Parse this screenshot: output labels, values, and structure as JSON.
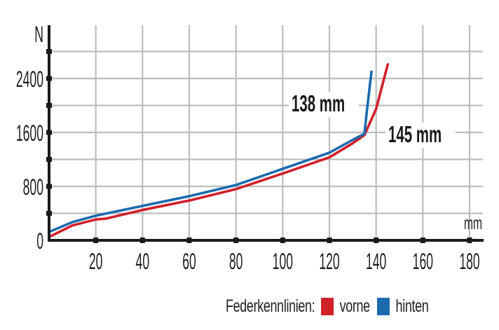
{
  "chart_data": {
    "type": "line",
    "title": "",
    "xlabel": "mm",
    "ylabel": "N",
    "xlim": [
      0,
      185
    ],
    "ylim": [
      0,
      3000
    ],
    "x_ticks": [
      20,
      40,
      60,
      80,
      100,
      120,
      140,
      160,
      180
    ],
    "y_ticks": [
      0,
      800,
      1600,
      2400
    ],
    "y_gridlines": [
      400,
      800,
      1200,
      1600,
      2000,
      2400,
      2800
    ],
    "grid": true,
    "legend": {
      "title": "Federkennlinien:",
      "position": "bottom-right",
      "entries": [
        {
          "name": "vorne",
          "color": "#D0202A"
        },
        {
          "name": "hinten",
          "color": "#1B6BAE"
        }
      ]
    },
    "series": [
      {
        "name": "vorne",
        "color": "#D0202A",
        "x": [
          0,
          10,
          20,
          24,
          40,
          60,
          80,
          100,
          120,
          130,
          135,
          140,
          145
        ],
        "y": [
          50,
          220,
          310,
          320,
          450,
          590,
          760,
          990,
          1230,
          1440,
          1560,
          1950,
          2610
        ]
      },
      {
        "name": "hinten",
        "color": "#1B6BAE",
        "x": [
          0,
          10,
          20,
          40,
          60,
          80,
          100,
          120,
          130,
          135,
          136,
          138
        ],
        "y": [
          125,
          270,
          365,
          510,
          655,
          820,
          1060,
          1300,
          1490,
          1580,
          1900,
          2500
        ]
      }
    ],
    "annotations": [
      {
        "text": "138 mm",
        "series": "hinten",
        "x": 138
      },
      {
        "text": "145 mm",
        "series": "vorne",
        "x": 145
      }
    ]
  },
  "axis": {
    "y_unit": "N",
    "x_unit": "mm",
    "y_labels": [
      "2400",
      "1600",
      "800",
      "0"
    ],
    "x_labels": [
      "20",
      "40",
      "60",
      "80",
      "100",
      "120",
      "140",
      "160",
      "180"
    ]
  },
  "annotations": {
    "hinten_label": "138 mm",
    "vorne_label": "145 mm"
  },
  "legend": {
    "title": "Federkennlinien:",
    "vorne": "vorne",
    "hinten": "hinten",
    "vorne_color": "#D0202A",
    "hinten_color": "#1B6BAE"
  }
}
